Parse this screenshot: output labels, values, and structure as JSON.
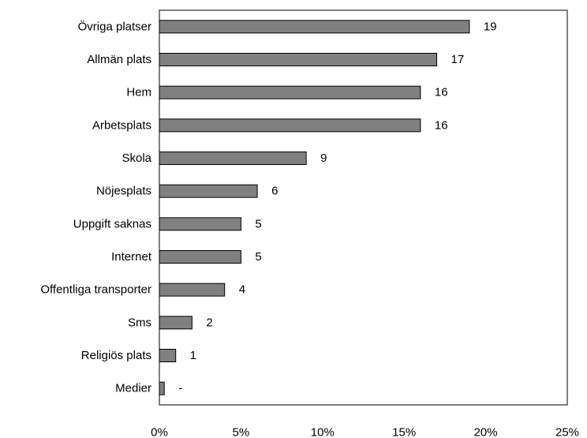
{
  "chart_data": {
    "type": "bar",
    "orientation": "horizontal",
    "categories": [
      "Övriga platser",
      "Allmän plats",
      "Hem",
      "Arbetsplats",
      "Skola",
      "Nöjesplats",
      "Uppgift saknas",
      "Internet",
      "Offentliga transporter",
      "Sms",
      "Religiös plats",
      "Medier"
    ],
    "values": [
      19,
      17,
      16,
      16,
      9,
      6,
      5,
      5,
      4,
      2,
      1,
      0.3
    ],
    "value_labels": [
      "19",
      "17",
      "16",
      "16",
      "9",
      "6",
      "5",
      "5",
      "4",
      "2",
      "1",
      "-"
    ],
    "title": "",
    "xlabel": "",
    "ylabel": "",
    "xlim": [
      0,
      25
    ],
    "x_ticks": [
      0,
      5,
      10,
      15,
      20,
      25
    ],
    "x_tick_labels": [
      "0%",
      "5%",
      "10%",
      "15%",
      "20%",
      "25%"
    ],
    "grid": false,
    "legend": "none",
    "bar_color": "#808080",
    "bar_edge_color": "#000000"
  }
}
